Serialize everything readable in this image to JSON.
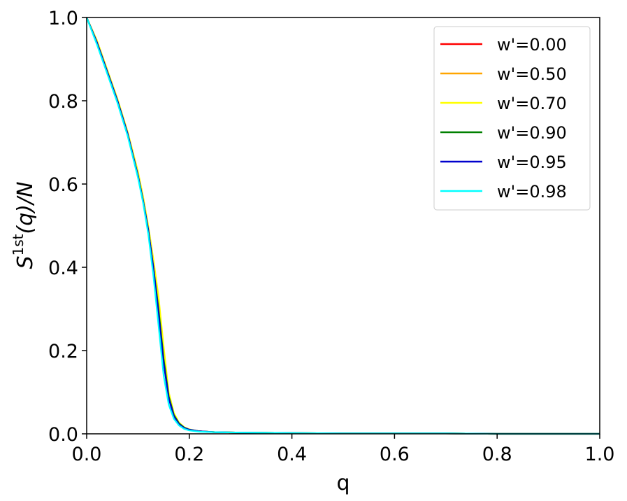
{
  "chart_data": {
    "type": "line",
    "xlabel": "q",
    "ylabel_base": "S",
    "ylabel_sup": "1st",
    "ylabel_tail": "(q)/N",
    "xlim": [
      0.0,
      1.0
    ],
    "ylim": [
      0.0,
      1.0
    ],
    "xticks": [
      "0.0",
      "0.2",
      "0.4",
      "0.6",
      "0.8",
      "1.0"
    ],
    "yticks": [
      "0.0",
      "0.2",
      "0.4",
      "0.6",
      "0.8",
      "1.0"
    ],
    "grid": false,
    "legend_position": "top-right",
    "x": [
      0.0,
      0.02,
      0.04,
      0.06,
      0.08,
      0.1,
      0.11,
      0.12,
      0.13,
      0.14,
      0.15,
      0.16,
      0.17,
      0.18,
      0.19,
      0.2,
      0.22,
      0.25,
      0.3,
      0.4,
      0.5,
      0.6,
      0.7,
      0.8,
      0.9,
      1.0
    ],
    "series": [
      {
        "name": "w'=0.00",
        "color": "#ff0000",
        "values": [
          1.0,
          0.94,
          0.87,
          0.8,
          0.72,
          0.62,
          0.56,
          0.49,
          0.4,
          0.3,
          0.18,
          0.09,
          0.045,
          0.025,
          0.015,
          0.01,
          0.006,
          0.004,
          0.003,
          0.002,
          0.001,
          0.001,
          0.001,
          0.0,
          0.0,
          0.0
        ]
      },
      {
        "name": "w'=0.50",
        "color": "#ffa500",
        "values": [
          1.0,
          0.94,
          0.87,
          0.8,
          0.72,
          0.62,
          0.56,
          0.49,
          0.4,
          0.31,
          0.19,
          0.095,
          0.048,
          0.026,
          0.016,
          0.01,
          0.006,
          0.004,
          0.003,
          0.002,
          0.001,
          0.001,
          0.001,
          0.0,
          0.0,
          0.0
        ]
      },
      {
        "name": "w'=0.70",
        "color": "#ffff00",
        "values": [
          1.0,
          0.945,
          0.875,
          0.805,
          0.725,
          0.63,
          0.57,
          0.5,
          0.42,
          0.33,
          0.21,
          0.1,
          0.05,
          0.027,
          0.016,
          0.011,
          0.006,
          0.004,
          0.003,
          0.002,
          0.001,
          0.001,
          0.001,
          0.0,
          0.0,
          0.0
        ]
      },
      {
        "name": "w'=0.90",
        "color": "#008000",
        "values": [
          1.0,
          0.94,
          0.87,
          0.8,
          0.72,
          0.62,
          0.56,
          0.49,
          0.4,
          0.3,
          0.18,
          0.09,
          0.045,
          0.025,
          0.015,
          0.01,
          0.006,
          0.004,
          0.003,
          0.002,
          0.001,
          0.001,
          0.001,
          0.0,
          0.0,
          0.0
        ]
      },
      {
        "name": "w'=0.95",
        "color": "#0000cd",
        "values": [
          1.0,
          0.94,
          0.87,
          0.8,
          0.72,
          0.62,
          0.56,
          0.49,
          0.4,
          0.29,
          0.17,
          0.085,
          0.042,
          0.023,
          0.014,
          0.01,
          0.006,
          0.004,
          0.003,
          0.002,
          0.001,
          0.001,
          0.001,
          0.0,
          0.0,
          0.0
        ]
      },
      {
        "name": "w'=0.98",
        "color": "#00ffff",
        "values": [
          1.0,
          0.935,
          0.865,
          0.795,
          0.715,
          0.615,
          0.555,
          0.48,
          0.38,
          0.26,
          0.14,
          0.07,
          0.036,
          0.02,
          0.012,
          0.008,
          0.005,
          0.004,
          0.003,
          0.002,
          0.001,
          0.001,
          0.001,
          0.0,
          0.0,
          0.0
        ]
      }
    ]
  }
}
